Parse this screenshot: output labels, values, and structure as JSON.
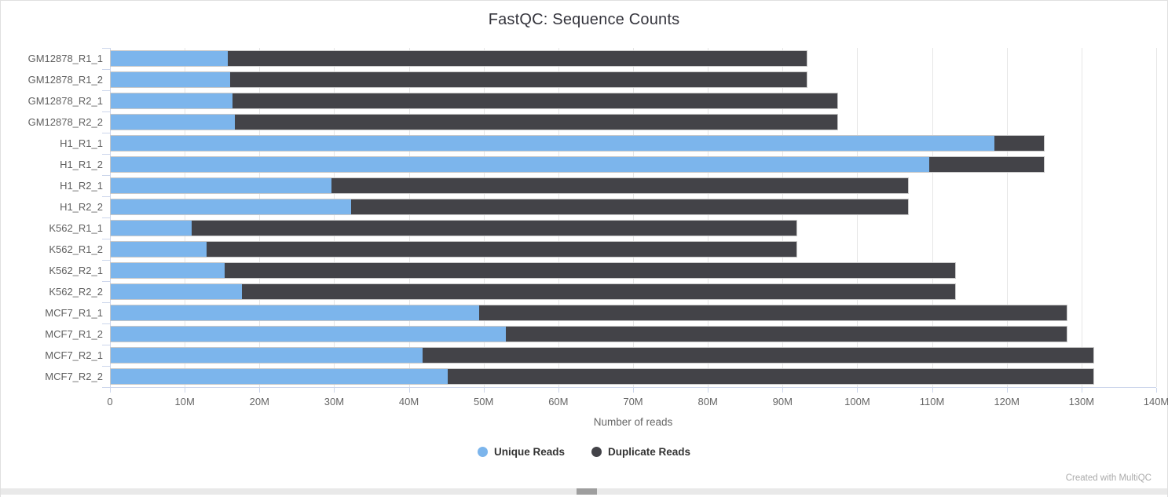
{
  "chart": {
    "title": "FastQC: Sequence Counts",
    "xlabel": "Number of reads",
    "footer": "Created with MultiQC"
  },
  "colors": {
    "unique_reads": "#7cb5ec",
    "duplicate_reads": "#434348",
    "gridline": "#e6e6e6",
    "axis_line": "#ccd6eb",
    "tick_text": "#666666",
    "category_text": "#606060"
  },
  "chart_data": {
    "type": "bar",
    "orientation": "horizontal",
    "stacked": true,
    "title": "FastQC: Sequence Counts",
    "xlabel": "Number of reads",
    "ylabel": "",
    "unit": "millions of reads",
    "xlim_millions": [
      0,
      140
    ],
    "grid": true,
    "legend_position": "bottom",
    "x_ticks": [
      {
        "value": 0,
        "label": "0"
      },
      {
        "value": 10,
        "label": "10M"
      },
      {
        "value": 20,
        "label": "20M"
      },
      {
        "value": 30,
        "label": "30M"
      },
      {
        "value": 40,
        "label": "40M"
      },
      {
        "value": 50,
        "label": "50M"
      },
      {
        "value": 60,
        "label": "60M"
      },
      {
        "value": 70,
        "label": "70M"
      },
      {
        "value": 80,
        "label": "80M"
      },
      {
        "value": 90,
        "label": "90M"
      },
      {
        "value": 100,
        "label": "100M"
      },
      {
        "value": 110,
        "label": "110M"
      },
      {
        "value": 120,
        "label": "120M"
      },
      {
        "value": 130,
        "label": "130M"
      },
      {
        "value": 140,
        "label": "140M"
      }
    ],
    "categories": [
      "GM12878_R1_1",
      "GM12878_R1_2",
      "GM12878_R2_1",
      "GM12878_R2_2",
      "H1_R1_1",
      "H1_R1_2",
      "H1_R2_1",
      "H1_R2_2",
      "K562_R1_1",
      "K562_R1_2",
      "K562_R2_1",
      "K562_R2_2",
      "MCF7_R1_1",
      "MCF7_R1_2",
      "MCF7_R2_1",
      "MCF7_R2_2"
    ],
    "series": [
      {
        "name": "Unique Reads",
        "color": "#7cb5ec",
        "values_millions": [
          15.7,
          16.0,
          16.3,
          16.6,
          118.4,
          109.7,
          29.6,
          32.2,
          10.8,
          12.8,
          15.3,
          17.6,
          49.4,
          53.0,
          41.8,
          45.2
        ]
      },
      {
        "name": "Duplicate Reads",
        "color": "#434348",
        "values_millions": [
          77.6,
          77.3,
          81.1,
          80.8,
          6.7,
          15.4,
          77.3,
          74.7,
          81.2,
          79.2,
          97.9,
          95.6,
          78.7,
          75.1,
          89.9,
          86.5
        ]
      }
    ]
  }
}
